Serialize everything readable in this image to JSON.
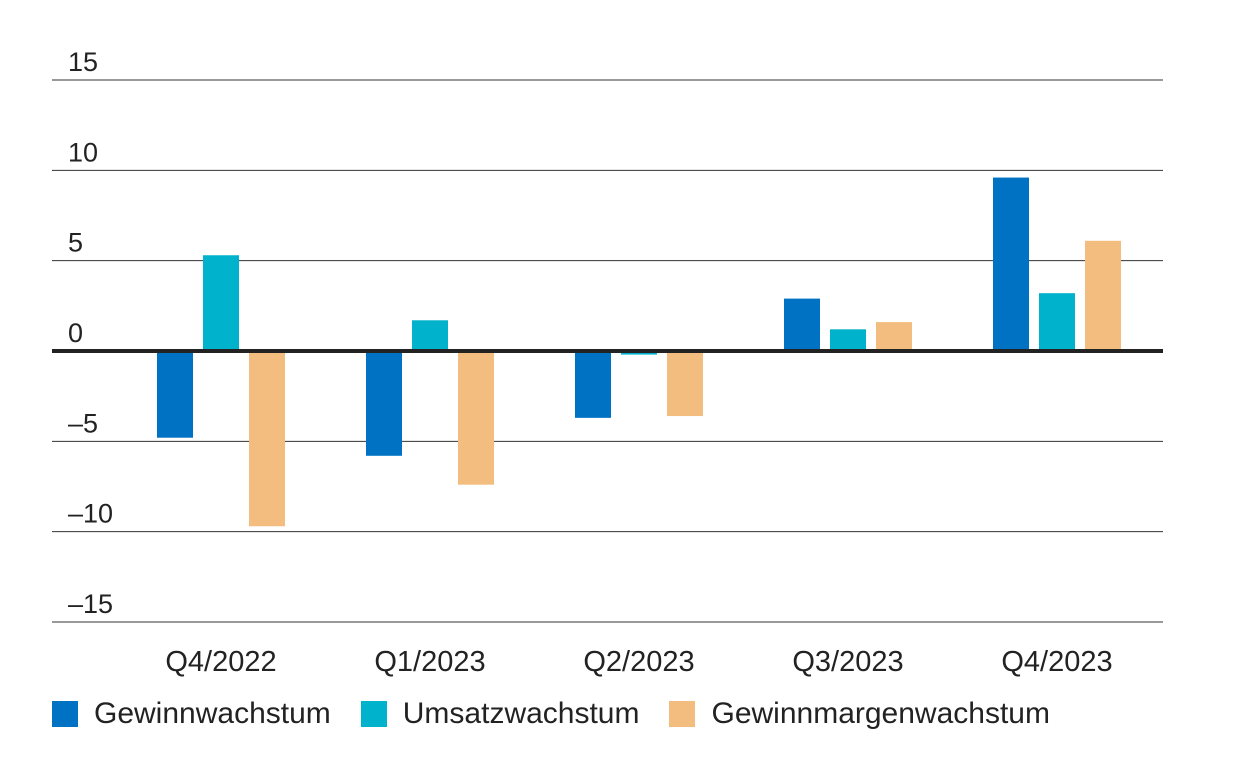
{
  "chart_data": {
    "type": "bar",
    "categories": [
      "Q4/2022",
      "Q1/2023",
      "Q2/2023",
      "Q3/2023",
      "Q4/2023"
    ],
    "series": [
      {
        "name": "Gewinnwachstum",
        "color": "#0072c3",
        "values": [
          -4.8,
          -5.8,
          -3.7,
          2.9,
          9.6
        ]
      },
      {
        "name": "Umsatzwachstum",
        "color": "#00b2cc",
        "values": [
          5.3,
          1.7,
          -0.2,
          1.2,
          3.2
        ]
      },
      {
        "name": "Gewinnmargenwachstum",
        "color": "#f2bd7f",
        "values": [
          -9.7,
          -7.4,
          -3.6,
          1.6,
          6.1
        ]
      }
    ],
    "ylim": [
      -15,
      15
    ],
    "yticks": [
      15,
      10,
      5,
      0,
      -5,
      -10,
      -15
    ],
    "ytick_labels": [
      "15",
      "10",
      "5",
      "0",
      "–5",
      "–10",
      "–15"
    ],
    "grid": true,
    "legend_position": "bottom-left",
    "title": "",
    "xlabel": "",
    "ylabel": ""
  }
}
